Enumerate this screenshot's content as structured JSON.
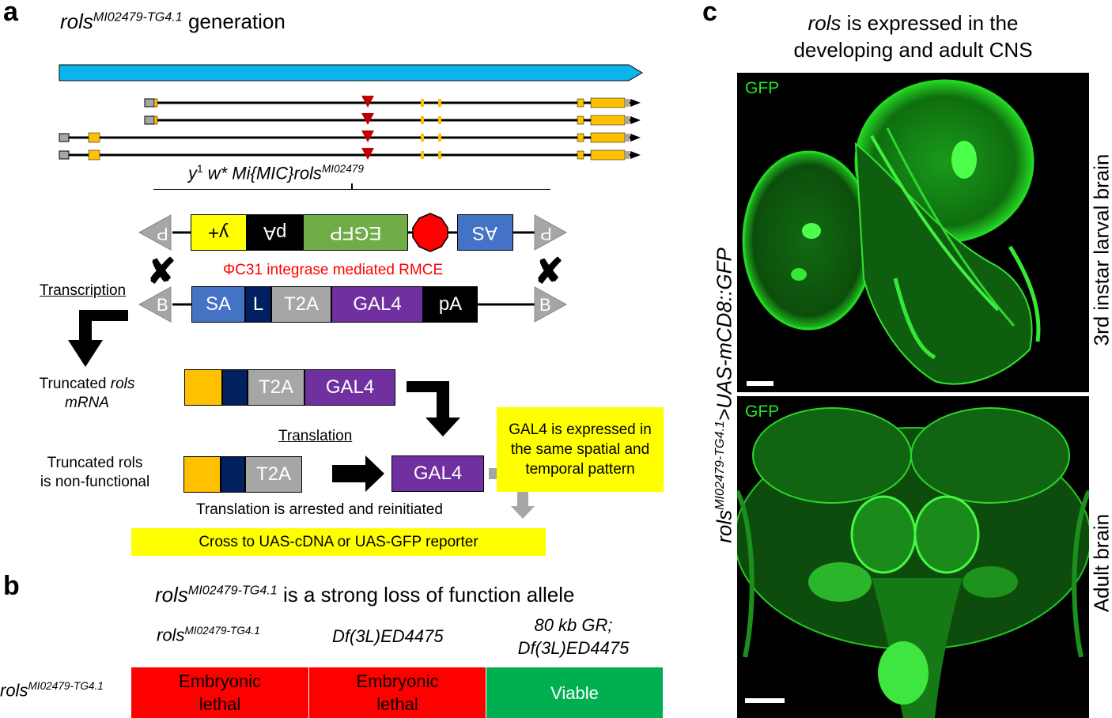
{
  "panel_a": {
    "letter": "a",
    "title_gene": "rols",
    "title_sup": "MI02479-TG4.1",
    "title_rest": " generation",
    "gene_label": "rols",
    "allele_italic_1": "y",
    "allele_sup_1": "1",
    "allele_italic_2": " w* Mi{MIC}rols",
    "allele_sup_2": "MI02479",
    "mimic_cassette": [
      "P",
      "y+",
      "pA",
      "EGFP",
      "AS",
      "P"
    ],
    "rmce_label": "ΦC31 integrase mediated RMCE",
    "donor_cassette": [
      "B",
      "SA",
      "L",
      "T2A",
      "GAL4",
      "pA",
      "B"
    ],
    "transcription_label": "Transcription",
    "mrna_label_1": "Truncated ",
    "mrna_label_2": "rols",
    "mrna_label_3": "mRNA",
    "mrna_boxes": [
      "T2A",
      "GAL4"
    ],
    "translation_label": "Translation",
    "protein_label_1": "Truncated rols",
    "protein_label_2": "is non-functional",
    "protein_boxes": [
      "T2A"
    ],
    "gal4_protein": "GAL4",
    "gal4_note": "GAL4 is expressed in the same spatial and temporal pattern",
    "arrest_label": "Translation is arrested and reinitiated",
    "cross_label": "Cross to UAS-cDNA or UAS-GFP reporter",
    "colors": {
      "gene_bar": "#0bb4ec",
      "exon": "#ffc000",
      "utr": "#a6a6a6",
      "insertion": "#c00000",
      "yellow": "#ffff00",
      "egfp": "#70ad47",
      "stop": "#ff0000",
      "sa_blue": "#4472c4",
      "navy": "#002060",
      "gal4": "#7030a0",
      "red_text": "#ff0000"
    }
  },
  "panel_b": {
    "letter": "b",
    "title_gene": "rols",
    "title_sup": "MI02479-TG4.1",
    "title_rest": " is a strong loss of function allele",
    "col1_gene": "rols",
    "col1_sup": "MI02479-TG4.1",
    "col2": "Df(3L)ED4475",
    "col3_line1": "80 kb GR;",
    "col3_line2": "Df(3L)ED4475",
    "row_gene": "rols",
    "row_sup": "MI02479-TG4.1",
    "results": [
      {
        "line1": "Embryonic",
        "line2": "lethal",
        "color": "#ff0000"
      },
      {
        "line1": "Embryonic",
        "line2": "lethal",
        "color": "#ff0000"
      },
      {
        "line1": "Viable",
        "line2": "",
        "color": "#00b050"
      }
    ]
  },
  "panel_c": {
    "letter": "c",
    "title_gene": "rols",
    "title_rest_1": " is expressed in the",
    "title_line2": "developing and adult CNS",
    "genotype_gene": "rols",
    "genotype_sup": "MI02479-TG4.1",
    "genotype_rest": ">UAS-mCD8::GFP",
    "top_label": "3rd instar larval brain",
    "bottom_label": "Adult brain",
    "gfp_label": "GFP"
  }
}
